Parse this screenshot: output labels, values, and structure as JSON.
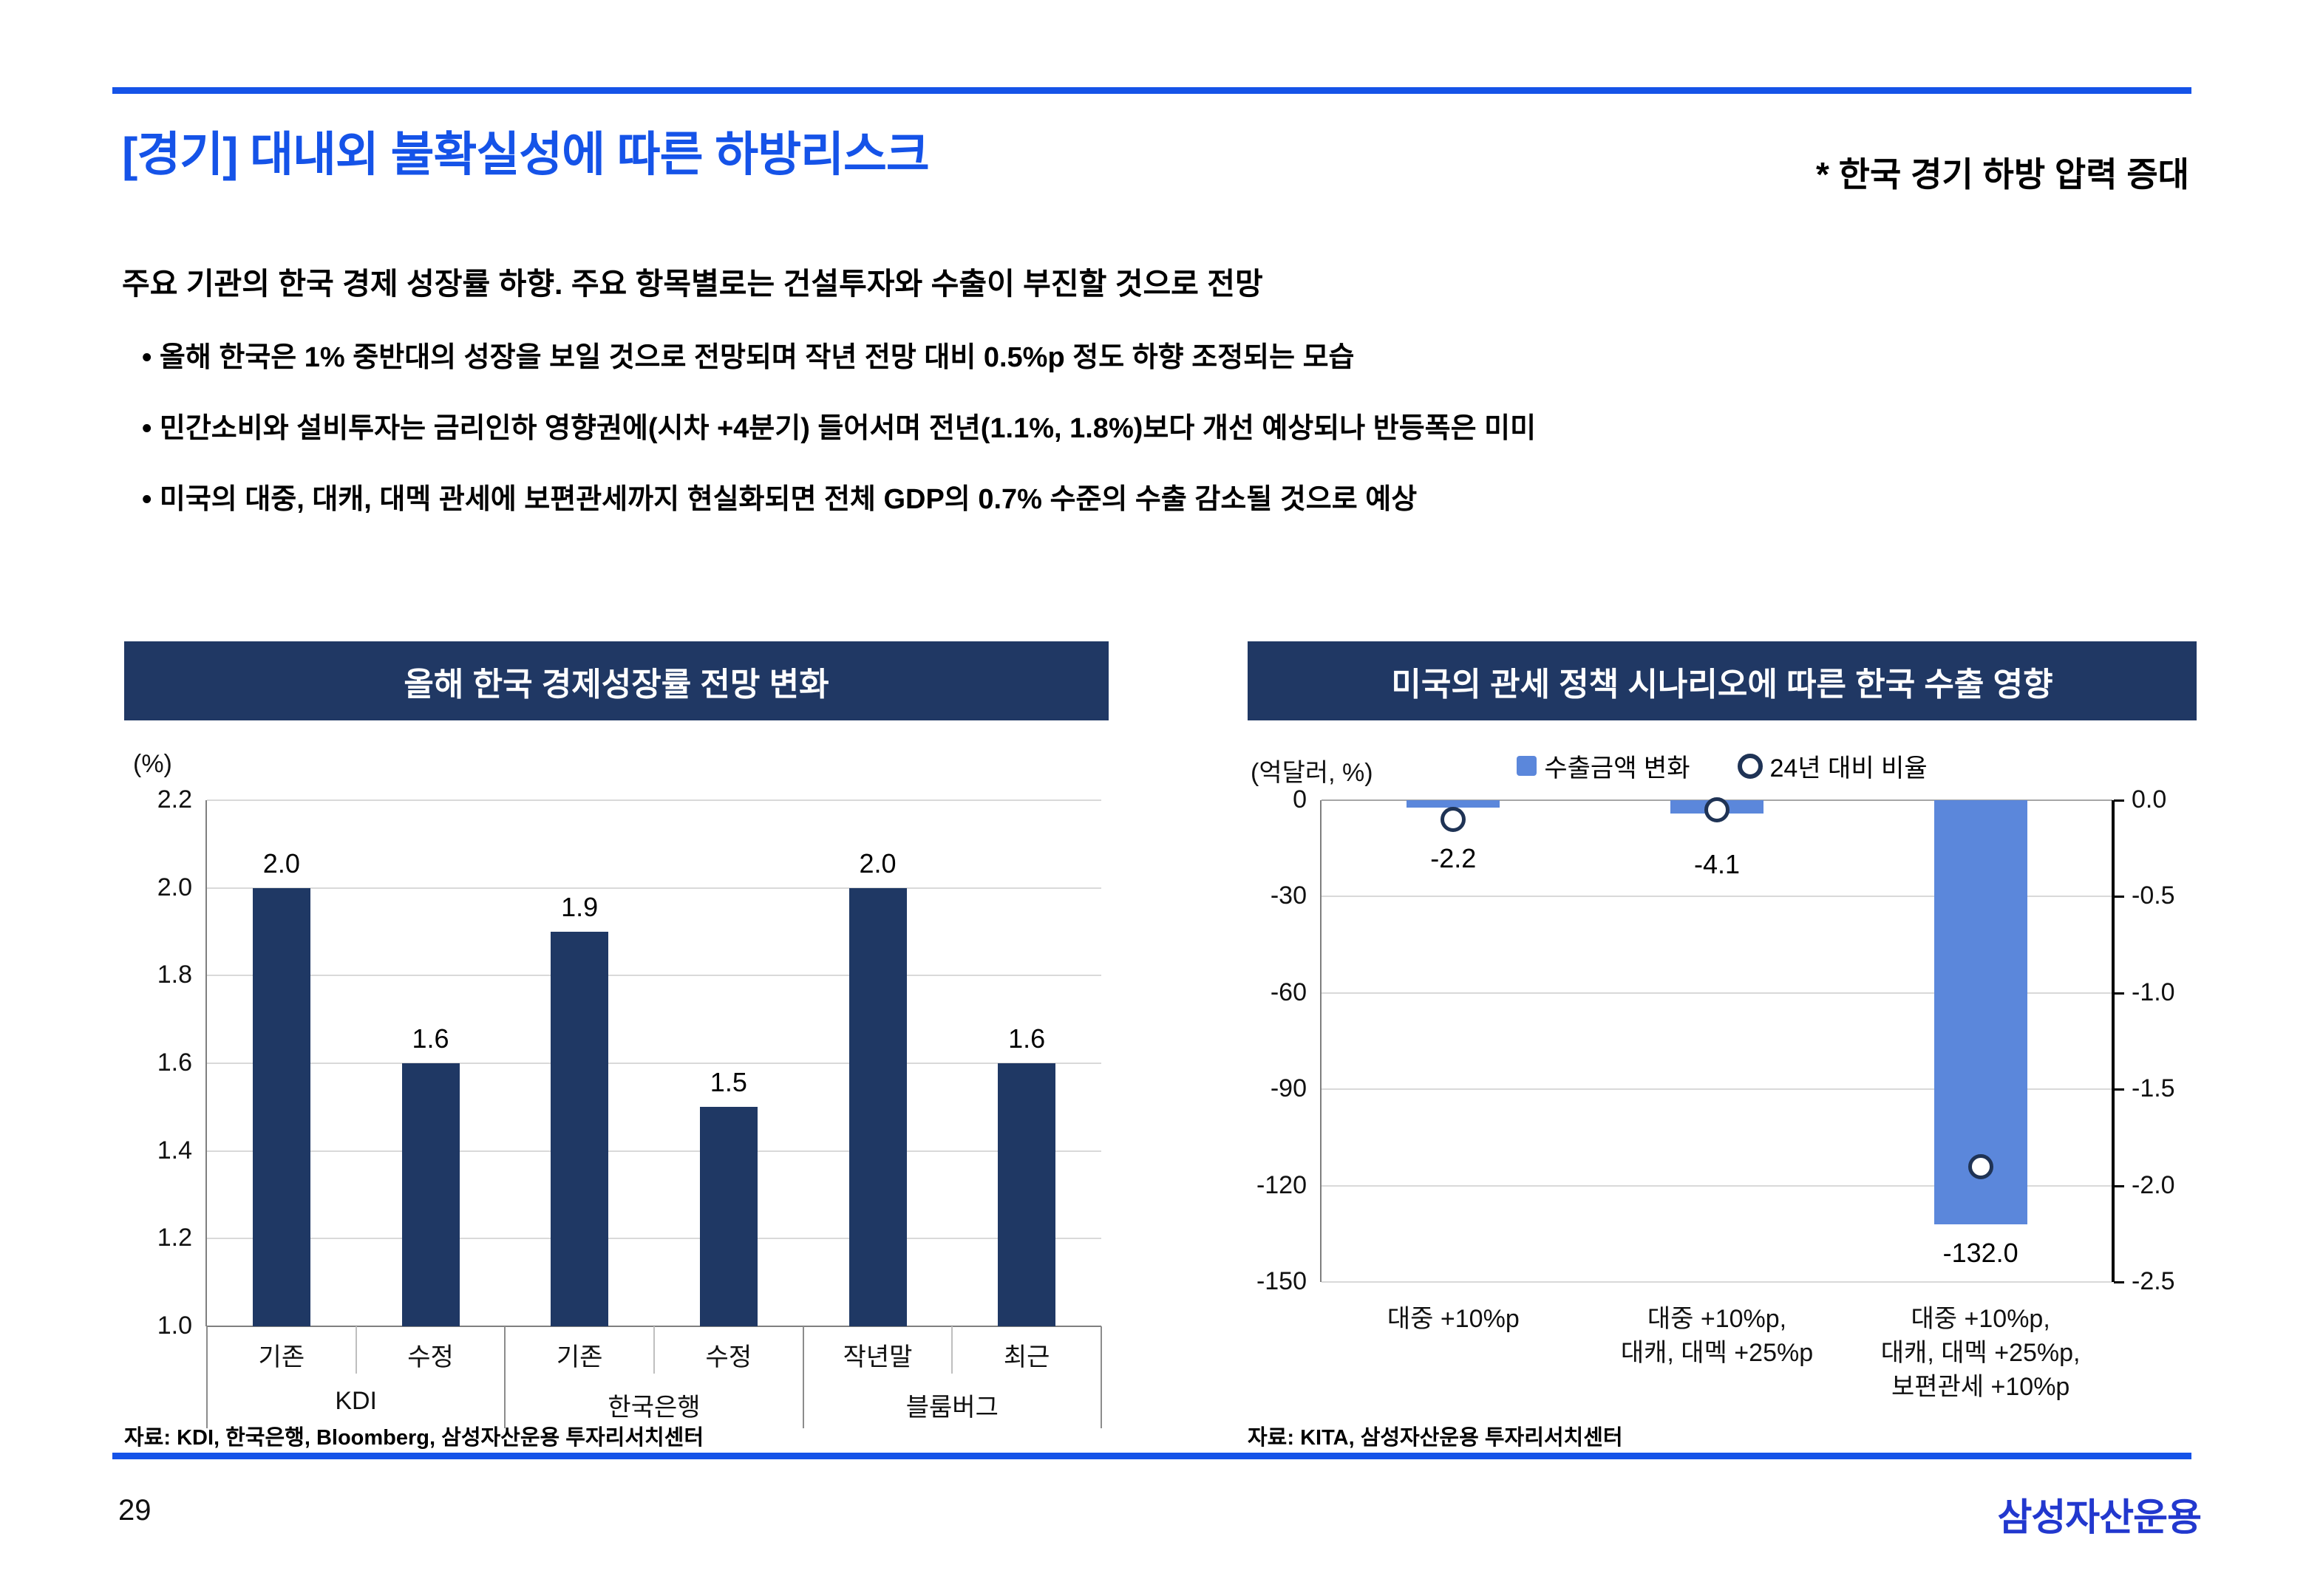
{
  "page": {
    "number": "29",
    "logo": "삼성자산운용"
  },
  "header": {
    "title": "[경기] 대내외 불확실성에 따른 하방리스크",
    "subtitle": "* 한국 경기 하방 압력 증대"
  },
  "body": {
    "lead": "주요 기관의 한국 경제 성장률 하향. 주요 항목별로는 건설투자와 수출이 부진할 것으로 전망",
    "bullets": [
      "올해 한국은 1% 중반대의 성장을 보일 것으로 전망되며 작년 전망 대비 0.5%p 정도 하향 조정되는 모습",
      "민간소비와 설비투자는 금리인하 영향권에(시차 +4분기) 들어서며 전년(1.1%, 1.8%)보다 개선 예상되나 반등폭은 미미",
      "미국의 대중, 대캐, 대멕 관세에 보편관세까지 현실화되면 전체 GDP의 0.7% 수준의 수출 감소될 것으로 예상"
    ]
  },
  "chart_data": [
    {
      "id": "growth",
      "type": "bar",
      "title": "올해 한국 경제성장률 전망 변화",
      "unit": "(%)",
      "categories": [
        "기존",
        "수정",
        "기존",
        "수정",
        "작년말",
        "최근"
      ],
      "groups": [
        {
          "label": "KDI",
          "span": 2
        },
        {
          "label": "한국은행",
          "span": 2
        },
        {
          "label": "블룸버그",
          "span": 2
        }
      ],
      "values": [
        2.0,
        1.6,
        1.9,
        1.5,
        2.0,
        1.6
      ],
      "value_labels": [
        "2.0",
        "1.6",
        "1.9",
        "1.5",
        "2.0",
        "1.6"
      ],
      "ylim": [
        1.0,
        2.2
      ],
      "yticks": [
        "2.2",
        "2.0",
        "1.8",
        "1.6",
        "1.4",
        "1.2",
        "1.0"
      ],
      "grid": true,
      "legend_position": "none",
      "bar_color": "#1F3864",
      "source": "자료: KDI, 한국은행, Bloomberg, 삼성자산운용 투자리서치센터"
    },
    {
      "id": "tariff",
      "type": "combo-bar-scatter",
      "title": "미국의 관세 정책 시나리오에 따른 한국 수출 영향",
      "unit": "(억달러, %)",
      "legend": [
        {
          "label": "수출금액 변화",
          "marker": "square",
          "color": "#5B87DB"
        },
        {
          "label": "24년 대비 비율",
          "marker": "circle",
          "color": "#1F3355"
        }
      ],
      "legend_position": "top-center",
      "grid": true,
      "categories": [
        [
          "대중 +10%p"
        ],
        [
          "대중 +10%p,",
          "대캐, 대멕 +25%p"
        ],
        [
          "대중 +10%p,",
          "대캐, 대멕 +25%p,",
          "보편관세 +10%p"
        ]
      ],
      "series": [
        {
          "name": "수출금액 변화",
          "type": "bar",
          "axis": "left",
          "values": [
            -2.2,
            -4.1,
            -132.0
          ],
          "labels": [
            "-2.2",
            "-4.1",
            "-132.0"
          ]
        },
        {
          "name": "24년 대비 비율",
          "type": "scatter",
          "axis": "right",
          "values": [
            -0.1,
            -0.05,
            -1.9
          ]
        }
      ],
      "left_axis": {
        "min": -150,
        "max": 0,
        "ticks": [
          "0",
          "-30",
          "-60",
          "-90",
          "-120",
          "-150"
        ]
      },
      "right_axis": {
        "min": -2.5,
        "max": 0,
        "ticks": [
          "0.0",
          "-0.5",
          "-1.0",
          "-1.5",
          "-2.0",
          "-2.5"
        ]
      },
      "bar_color": "#5B87DB",
      "source": "자료: KITA, 삼성자산운용 투자리서치센터"
    }
  ]
}
